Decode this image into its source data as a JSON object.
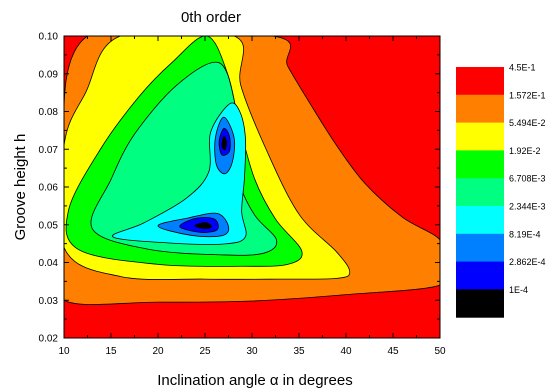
{
  "chart_data": {
    "type": "heatmap",
    "title": "0th order",
    "xlabel_prefix": "Inclination angle ",
    "xlabel_symbol": "α",
    "xlabel_suffix": " in degrees",
    "ylabel": "Groove height h",
    "xlim": [
      10,
      50
    ],
    "ylim": [
      0.02,
      0.1
    ],
    "x_ticks": [
      "10",
      "15",
      "20",
      "25",
      "30",
      "35",
      "40",
      "45",
      "50"
    ],
    "y_ticks": [
      "0.02",
      "0.03",
      "0.04",
      "0.05",
      "0.06",
      "0.07",
      "0.08",
      "0.09",
      "0.10"
    ],
    "legend": [
      {
        "label": "4.5E-1",
        "color": "#ff0000"
      },
      {
        "label": "1.572E-1",
        "color": "#ff8000"
      },
      {
        "label": "5.494E-2",
        "color": "#ffff00"
      },
      {
        "label": "1.92E-2",
        "color": "#00ff00"
      },
      {
        "label": "6.708E-3",
        "color": "#00ff80"
      },
      {
        "label": "2.344E-3",
        "color": "#00ffff"
      },
      {
        "label": "8.19E-4",
        "color": "#0080ff"
      },
      {
        "label": "2.862E-4",
        "color": "#0000ff"
      },
      {
        "label": "1E-4",
        "color": "#000000"
      }
    ],
    "levels": [
      {
        "color": "#ff8000",
        "boundary": [
          [
            12.5,
            0.1
          ],
          [
            10,
            0.062
          ],
          [
            10,
            0.043
          ],
          [
            10,
            0.03
          ],
          [
            20,
            0.0295
          ],
          [
            30,
            0.0298
          ],
          [
            40,
            0.0315
          ],
          [
            50,
            0.034
          ],
          [
            50,
            0.04
          ],
          [
            50,
            0.046
          ],
          [
            46,
            0.052
          ],
          [
            42,
            0.061
          ],
          [
            39,
            0.071
          ],
          [
            36.2,
            0.082
          ],
          [
            33.8,
            0.092
          ],
          [
            32.2,
            0.1
          ]
        ]
      },
      {
        "color": "#ffff00",
        "boundary": [
          [
            16,
            0.1
          ],
          [
            12.3,
            0.085
          ],
          [
            10,
            0.071
          ],
          [
            10,
            0.044
          ],
          [
            16,
            0.0363
          ],
          [
            25,
            0.0356
          ],
          [
            33,
            0.0356
          ],
          [
            39,
            0.0358
          ],
          [
            40.4,
            0.0375
          ],
          [
            39,
            0.0428
          ],
          [
            35,
            0.0528
          ],
          [
            31.5,
            0.07
          ],
          [
            28.8,
            0.087
          ],
          [
            28.1,
            0.1
          ]
        ]
      },
      {
        "color": "#00ff00",
        "boundary": [
          [
            25.2,
            0.1
          ],
          [
            21.5,
            0.093
          ],
          [
            18,
            0.084
          ],
          [
            14,
            0.0705
          ],
          [
            10.5,
            0.054
          ],
          [
            11.5,
            0.0435
          ],
          [
            20,
            0.0395
          ],
          [
            29,
            0.039
          ],
          [
            33.8,
            0.0395
          ],
          [
            35.3,
            0.043
          ],
          [
            32.5,
            0.0515
          ],
          [
            30.3,
            0.062
          ],
          [
            28.7,
            0.076
          ],
          [
            27.4,
            0.09
          ]
        ]
      },
      {
        "color": "#00ff80",
        "boundary": [
          [
            26.4,
            0.093
          ],
          [
            22,
            0.087
          ],
          [
            17.5,
            0.074
          ],
          [
            15,
            0.062
          ],
          [
            13,
            0.049
          ],
          [
            19,
            0.0435
          ],
          [
            27,
            0.042
          ],
          [
            31.3,
            0.0425
          ],
          [
            32.6,
            0.046
          ],
          [
            30.3,
            0.0525
          ],
          [
            28.7,
            0.061
          ],
          [
            28.3,
            0.072
          ],
          [
            28.1,
            0.083
          ]
        ]
      },
      {
        "color": "#00ffff",
        "boundary": [
          [
            27.6,
            0.082
          ],
          [
            25.6,
            0.0745
          ],
          [
            25.4,
            0.064
          ],
          [
            23,
            0.057
          ],
          [
            18.5,
            0.0505
          ],
          [
            15.2,
            0.0468
          ],
          [
            21,
            0.0452
          ],
          [
            27,
            0.0449
          ],
          [
            29.3,
            0.0468
          ],
          [
            28.9,
            0.0535
          ],
          [
            29.2,
            0.0625
          ],
          [
            29.3,
            0.073
          ],
          [
            28.7,
            0.08
          ]
        ]
      },
      {
        "color": "#0080ff",
        "boundary": [
          [
            27,
            0.0785
          ],
          [
            26.1,
            0.073
          ],
          [
            26.2,
            0.066
          ],
          [
            27.1,
            0.0635
          ],
          [
            27.9,
            0.0665
          ],
          [
            28.1,
            0.073
          ]
        ]
      },
      {
        "color": "#0080ff",
        "boundary": [
          [
            20,
            0.0497
          ],
          [
            23.5,
            0.0472
          ],
          [
            26.8,
            0.0471
          ],
          [
            27.5,
            0.0495
          ],
          [
            26.3,
            0.053
          ],
          [
            23.2,
            0.0518
          ]
        ]
      },
      {
        "color": "#0000ff",
        "boundary": [
          [
            27,
            0.0755
          ],
          [
            26.5,
            0.072
          ],
          [
            26.8,
            0.0685
          ],
          [
            27.6,
            0.0695
          ],
          [
            27.6,
            0.0735
          ]
        ]
      },
      {
        "color": "#0000ff",
        "boundary": [
          [
            22.3,
            0.0495
          ],
          [
            24.5,
            0.048
          ],
          [
            26.3,
            0.0487
          ],
          [
            26,
            0.0515
          ],
          [
            24,
            0.0517
          ]
        ]
      },
      {
        "color": "#000000",
        "boundary": [
          [
            27,
            0.0735
          ],
          [
            26.8,
            0.071
          ],
          [
            27.1,
            0.0698
          ],
          [
            27.3,
            0.0718
          ]
        ]
      },
      {
        "color": "#000000",
        "boundary": [
          [
            23.9,
            0.0497
          ],
          [
            25.1,
            0.049
          ],
          [
            25.7,
            0.0496
          ],
          [
            25,
            0.0506
          ]
        ]
      }
    ]
  }
}
